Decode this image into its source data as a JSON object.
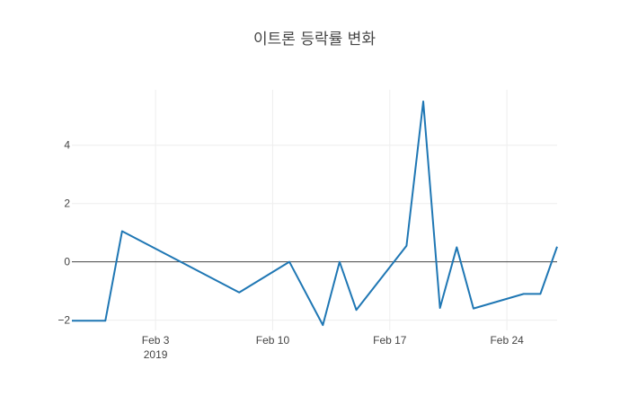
{
  "chart_data": {
    "type": "line",
    "title": "이트론 등락률 변화",
    "xlabel": "",
    "ylabel": "",
    "grid": true,
    "legend": "none",
    "x_range": [
      "2019-01-29",
      "2019-02-27"
    ],
    "ylim": [
      -2.35,
      5.9
    ],
    "x_ticks": [
      {
        "date": "2019-02-03",
        "label": "Feb 3",
        "sublabel": "2019"
      },
      {
        "date": "2019-02-10",
        "label": "Feb 10",
        "sublabel": ""
      },
      {
        "date": "2019-02-17",
        "label": "Feb 17",
        "sublabel": ""
      },
      {
        "date": "2019-02-24",
        "label": "Feb 24",
        "sublabel": ""
      }
    ],
    "y_ticks": [
      {
        "value": 4,
        "label": "4"
      },
      {
        "value": 2,
        "label": "2"
      },
      {
        "value": 0,
        "label": "0"
      },
      {
        "value": -2,
        "label": "−2"
      }
    ],
    "series": [
      {
        "color": "#1f77b4",
        "points": [
          {
            "x": "2019-01-29",
            "y": -2.02
          },
          {
            "x": "2019-01-31",
            "y": -2.02
          },
          {
            "x": "2019-02-01",
            "y": 1.05
          },
          {
            "x": "2019-02-08",
            "y": -1.05
          },
          {
            "x": "2019-02-11",
            "y": 0.0
          },
          {
            "x": "2019-02-13",
            "y": -2.17
          },
          {
            "x": "2019-02-14",
            "y": 0.0
          },
          {
            "x": "2019-02-15",
            "y": -1.65
          },
          {
            "x": "2019-02-18",
            "y": 0.55
          },
          {
            "x": "2019-02-19",
            "y": 5.5
          },
          {
            "x": "2019-02-20",
            "y": -1.58
          },
          {
            "x": "2019-02-21",
            "y": 0.5
          },
          {
            "x": "2019-02-22",
            "y": -1.6
          },
          {
            "x": "2019-02-25",
            "y": -1.1
          },
          {
            "x": "2019-02-26",
            "y": -1.1
          },
          {
            "x": "2019-02-27",
            "y": 0.52
          }
        ]
      }
    ]
  }
}
